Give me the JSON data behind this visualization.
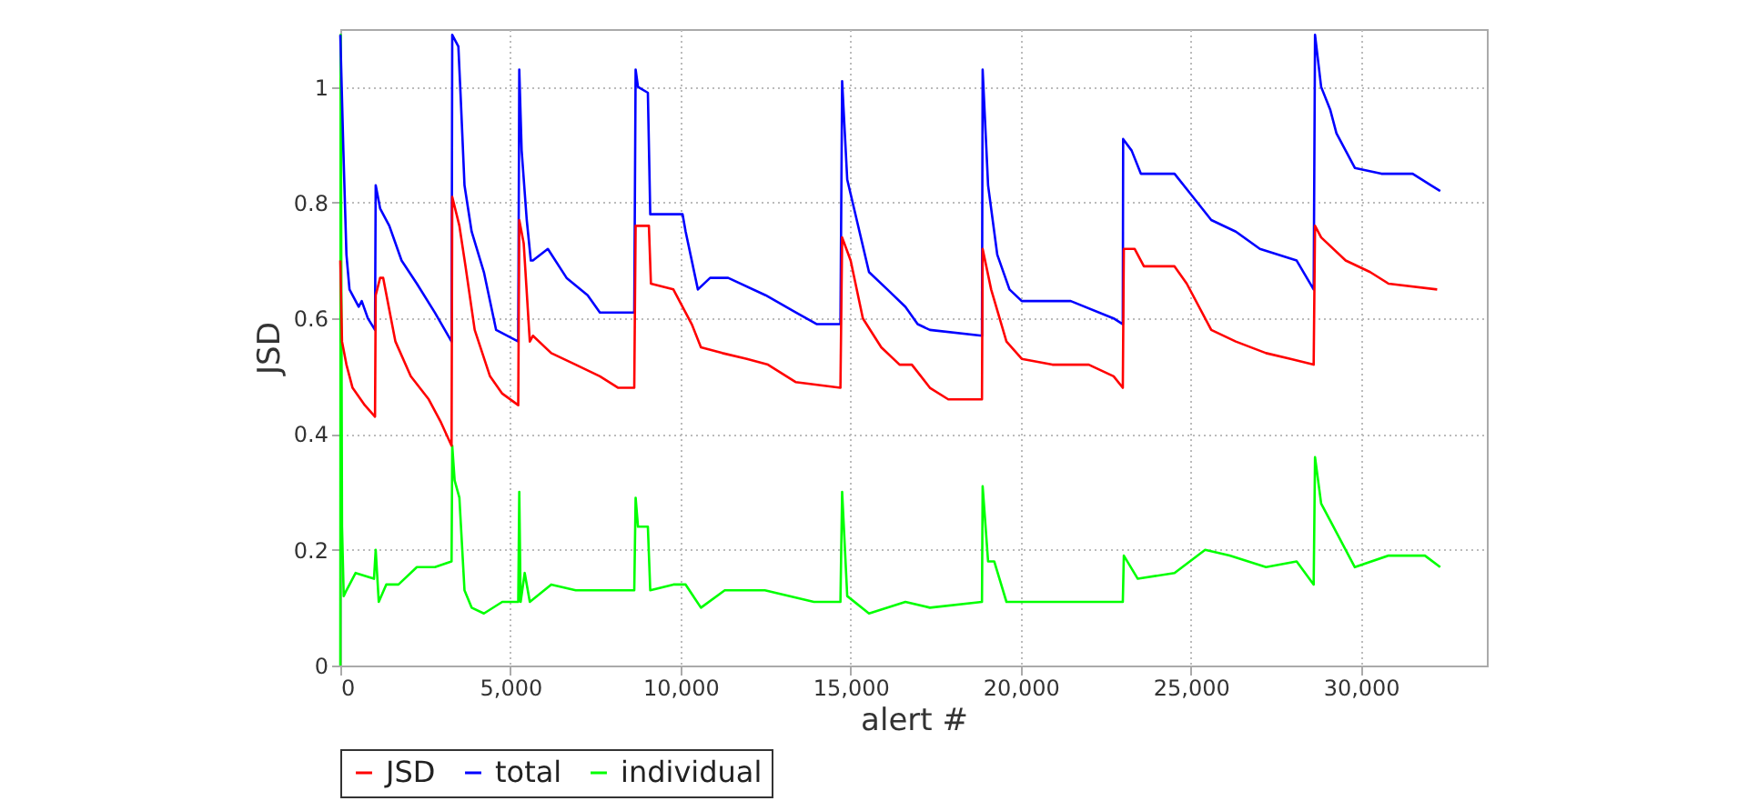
{
  "chart_data": {
    "type": "line",
    "xlabel": "alert #",
    "ylabel": "JSD",
    "xlim": [
      0,
      33700
    ],
    "ylim": [
      0,
      1.1
    ],
    "xticks": [
      0,
      {
        "value": 5000,
        "label": "5,000"
      },
      {
        "value": 10000,
        "label": "10,000"
      },
      {
        "value": 15000,
        "label": "15,000"
      },
      {
        "value": 20000,
        "label": "20,000"
      },
      {
        "value": 25000,
        "label": "25,000"
      },
      {
        "value": 30000,
        "label": "30,000"
      }
    ],
    "yticks": [
      0,
      0.2,
      0.4,
      0.6,
      0.8,
      1
    ],
    "grid": true,
    "legend": "bottom",
    "series": [
      {
        "name": "JSD",
        "color": "#ff0000",
        "x": [
          0,
          50,
          180,
          360,
          720,
          1020,
          1040,
          1170,
          1260,
          1620,
          2070,
          2600,
          2960,
          3270,
          3290,
          3500,
          3680,
          3950,
          4400,
          4760,
          5230,
          5260,
          5390,
          5570,
          5660,
          6200,
          6920,
          7630,
          8170,
          8640,
          8680,
          9070,
          9130,
          9790,
          10330,
          10600,
          11230,
          11950,
          12570,
          13380,
          14700,
          14750,
          15000,
          15360,
          15900,
          16440,
          16800,
          17330,
          17870,
          18860,
          18880,
          19130,
          19580,
          20030,
          20930,
          22000,
          22730,
          23000,
          23030,
          23350,
          23620,
          24520,
          24880,
          25600,
          26320,
          27210,
          27930,
          28610,
          28650,
          28830,
          29550,
          30270,
          30810,
          32240
        ],
        "values": [
          0.7,
          0.56,
          0.52,
          0.48,
          0.45,
          0.43,
          0.64,
          0.67,
          0.67,
          0.56,
          0.5,
          0.46,
          0.42,
          0.38,
          0.81,
          0.76,
          0.69,
          0.58,
          0.5,
          0.47,
          0.45,
          0.77,
          0.73,
          0.56,
          0.57,
          0.54,
          0.52,
          0.5,
          0.48,
          0.48,
          0.76,
          0.76,
          0.66,
          0.65,
          0.59,
          0.55,
          0.54,
          0.53,
          0.52,
          0.49,
          0.48,
          0.74,
          0.7,
          0.6,
          0.55,
          0.52,
          0.52,
          0.48,
          0.46,
          0.46,
          0.72,
          0.65,
          0.56,
          0.53,
          0.52,
          0.52,
          0.5,
          0.48,
          0.72,
          0.72,
          0.69,
          0.69,
          0.66,
          0.58,
          0.56,
          0.54,
          0.53,
          0.52,
          0.76,
          0.74,
          0.7,
          0.68,
          0.66,
          0.65
        ]
      },
      {
        "name": "total",
        "color": "#0000ff",
        "x": [
          0,
          90,
          180,
          270,
          540,
          630,
          810,
          1020,
          1040,
          1170,
          1440,
          1800,
          2250,
          2780,
          3270,
          3290,
          3470,
          3540,
          3650,
          3860,
          4220,
          4580,
          5230,
          5260,
          5330,
          5480,
          5600,
          5660,
          6100,
          6650,
          7270,
          7630,
          8640,
          8680,
          8750,
          9040,
          9110,
          10060,
          10150,
          10510,
          10870,
          11400,
          12500,
          13400,
          14010,
          14700,
          14750,
          14900,
          15180,
          15540,
          16080,
          16610,
          16970,
          17330,
          18860,
          18880,
          19040,
          19310,
          19670,
          20030,
          21470,
          22730,
          23000,
          23010,
          23260,
          23530,
          24520,
          25060,
          25600,
          26320,
          27030,
          28110,
          28610,
          28650,
          28830,
          29100,
          29280,
          29820,
          30600,
          31520,
          32060,
          32330
        ],
        "values": [
          1.09,
          0.89,
          0.71,
          0.65,
          0.62,
          0.63,
          0.6,
          0.58,
          0.83,
          0.79,
          0.76,
          0.7,
          0.66,
          0.61,
          0.56,
          1.09,
          1.07,
          0.98,
          0.83,
          0.75,
          0.68,
          0.58,
          0.56,
          1.03,
          0.89,
          0.77,
          0.7,
          0.7,
          0.72,
          0.67,
          0.64,
          0.61,
          0.61,
          1.03,
          1.0,
          0.99,
          0.78,
          0.78,
          0.75,
          0.65,
          0.67,
          0.67,
          0.64,
          0.61,
          0.59,
          0.59,
          1.01,
          0.84,
          0.77,
          0.68,
          0.65,
          0.62,
          0.59,
          0.58,
          0.57,
          1.03,
          0.83,
          0.71,
          0.65,
          0.63,
          0.63,
          0.6,
          0.59,
          0.91,
          0.89,
          0.85,
          0.85,
          0.81,
          0.77,
          0.75,
          0.72,
          0.7,
          0.65,
          1.09,
          1.0,
          0.96,
          0.92,
          0.86,
          0.85,
          0.85,
          0.83,
          0.82
        ]
      },
      {
        "name": "individual",
        "color": "#00ff00",
        "x": [
          0,
          10,
          50,
          100,
          180,
          450,
          990,
          1040,
          1130,
          1350,
          1710,
          2250,
          2780,
          3270,
          3290,
          3360,
          3500,
          3650,
          3860,
          4220,
          4760,
          5230,
          5260,
          5300,
          5420,
          5570,
          6200,
          6920,
          7990,
          8640,
          8680,
          8750,
          9040,
          9110,
          9790,
          10150,
          10600,
          11300,
          12480,
          13920,
          14700,
          14750,
          14900,
          15540,
          16610,
          17330,
          18860,
          18880,
          19040,
          19220,
          19580,
          20930,
          22730,
          23000,
          23030,
          23440,
          24520,
          25420,
          26140,
          27210,
          28110,
          28610,
          28650,
          28830,
          29100,
          29820,
          30810,
          31880,
          32330
        ],
        "values": [
          0,
          1.09,
          0.24,
          0.12,
          0.13,
          0.16,
          0.15,
          0.2,
          0.11,
          0.14,
          0.14,
          0.17,
          0.17,
          0.18,
          0.38,
          0.32,
          0.29,
          0.13,
          0.1,
          0.09,
          0.11,
          0.11,
          0.3,
          0.11,
          0.16,
          0.11,
          0.14,
          0.13,
          0.13,
          0.13,
          0.29,
          0.24,
          0.24,
          0.13,
          0.14,
          0.14,
          0.1,
          0.13,
          0.13,
          0.11,
          0.11,
          0.3,
          0.12,
          0.09,
          0.11,
          0.1,
          0.11,
          0.31,
          0.18,
          0.18,
          0.11,
          0.11,
          0.11,
          0.11,
          0.19,
          0.15,
          0.16,
          0.2,
          0.19,
          0.17,
          0.18,
          0.14,
          0.36,
          0.28,
          0.25,
          0.17,
          0.19,
          0.19,
          0.17
        ]
      }
    ]
  }
}
